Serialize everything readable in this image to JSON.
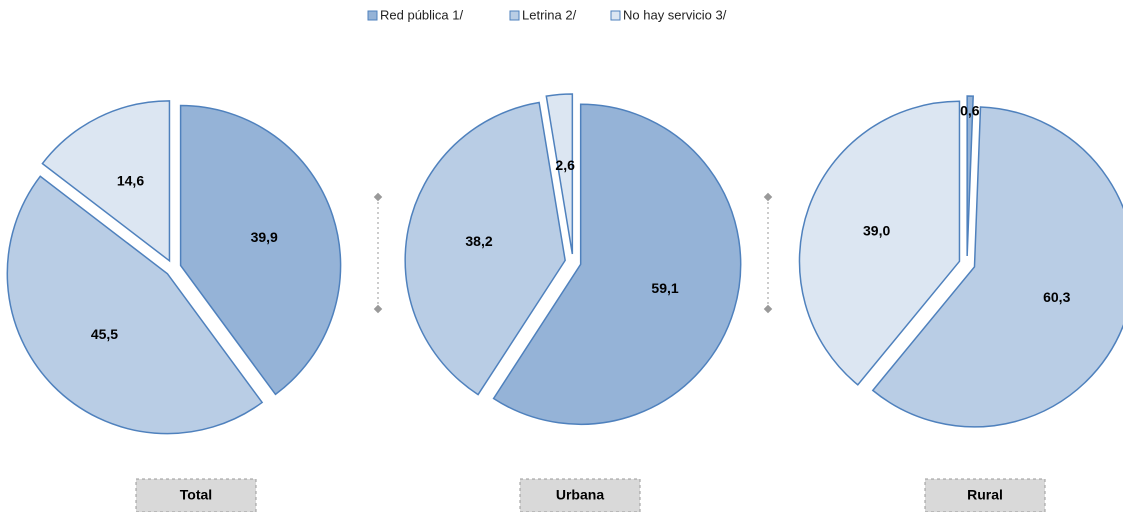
{
  "legend": {
    "labels": [
      "Red pública 1/",
      "Letrina 2/",
      "No hay servicio 3/"
    ],
    "colors": [
      "#95b3d7",
      "#b9cde5",
      "#dce6f2"
    ]
  },
  "chart_data": [
    {
      "type": "pie",
      "title": "Total",
      "values": [
        39.9,
        45.5,
        14.6
      ],
      "value_labels": [
        "39,9",
        "45,5",
        "14,6"
      ]
    },
    {
      "type": "pie",
      "title": "Urbana",
      "values": [
        59.1,
        38.2,
        2.6
      ],
      "value_labels": [
        "59,1",
        "38,2",
        "2,6"
      ]
    },
    {
      "type": "pie",
      "title": "Rural",
      "values": [
        0.6,
        60.3,
        39.0
      ],
      "value_labels": [
        "0,6",
        "60,3",
        "39,0"
      ]
    }
  ]
}
